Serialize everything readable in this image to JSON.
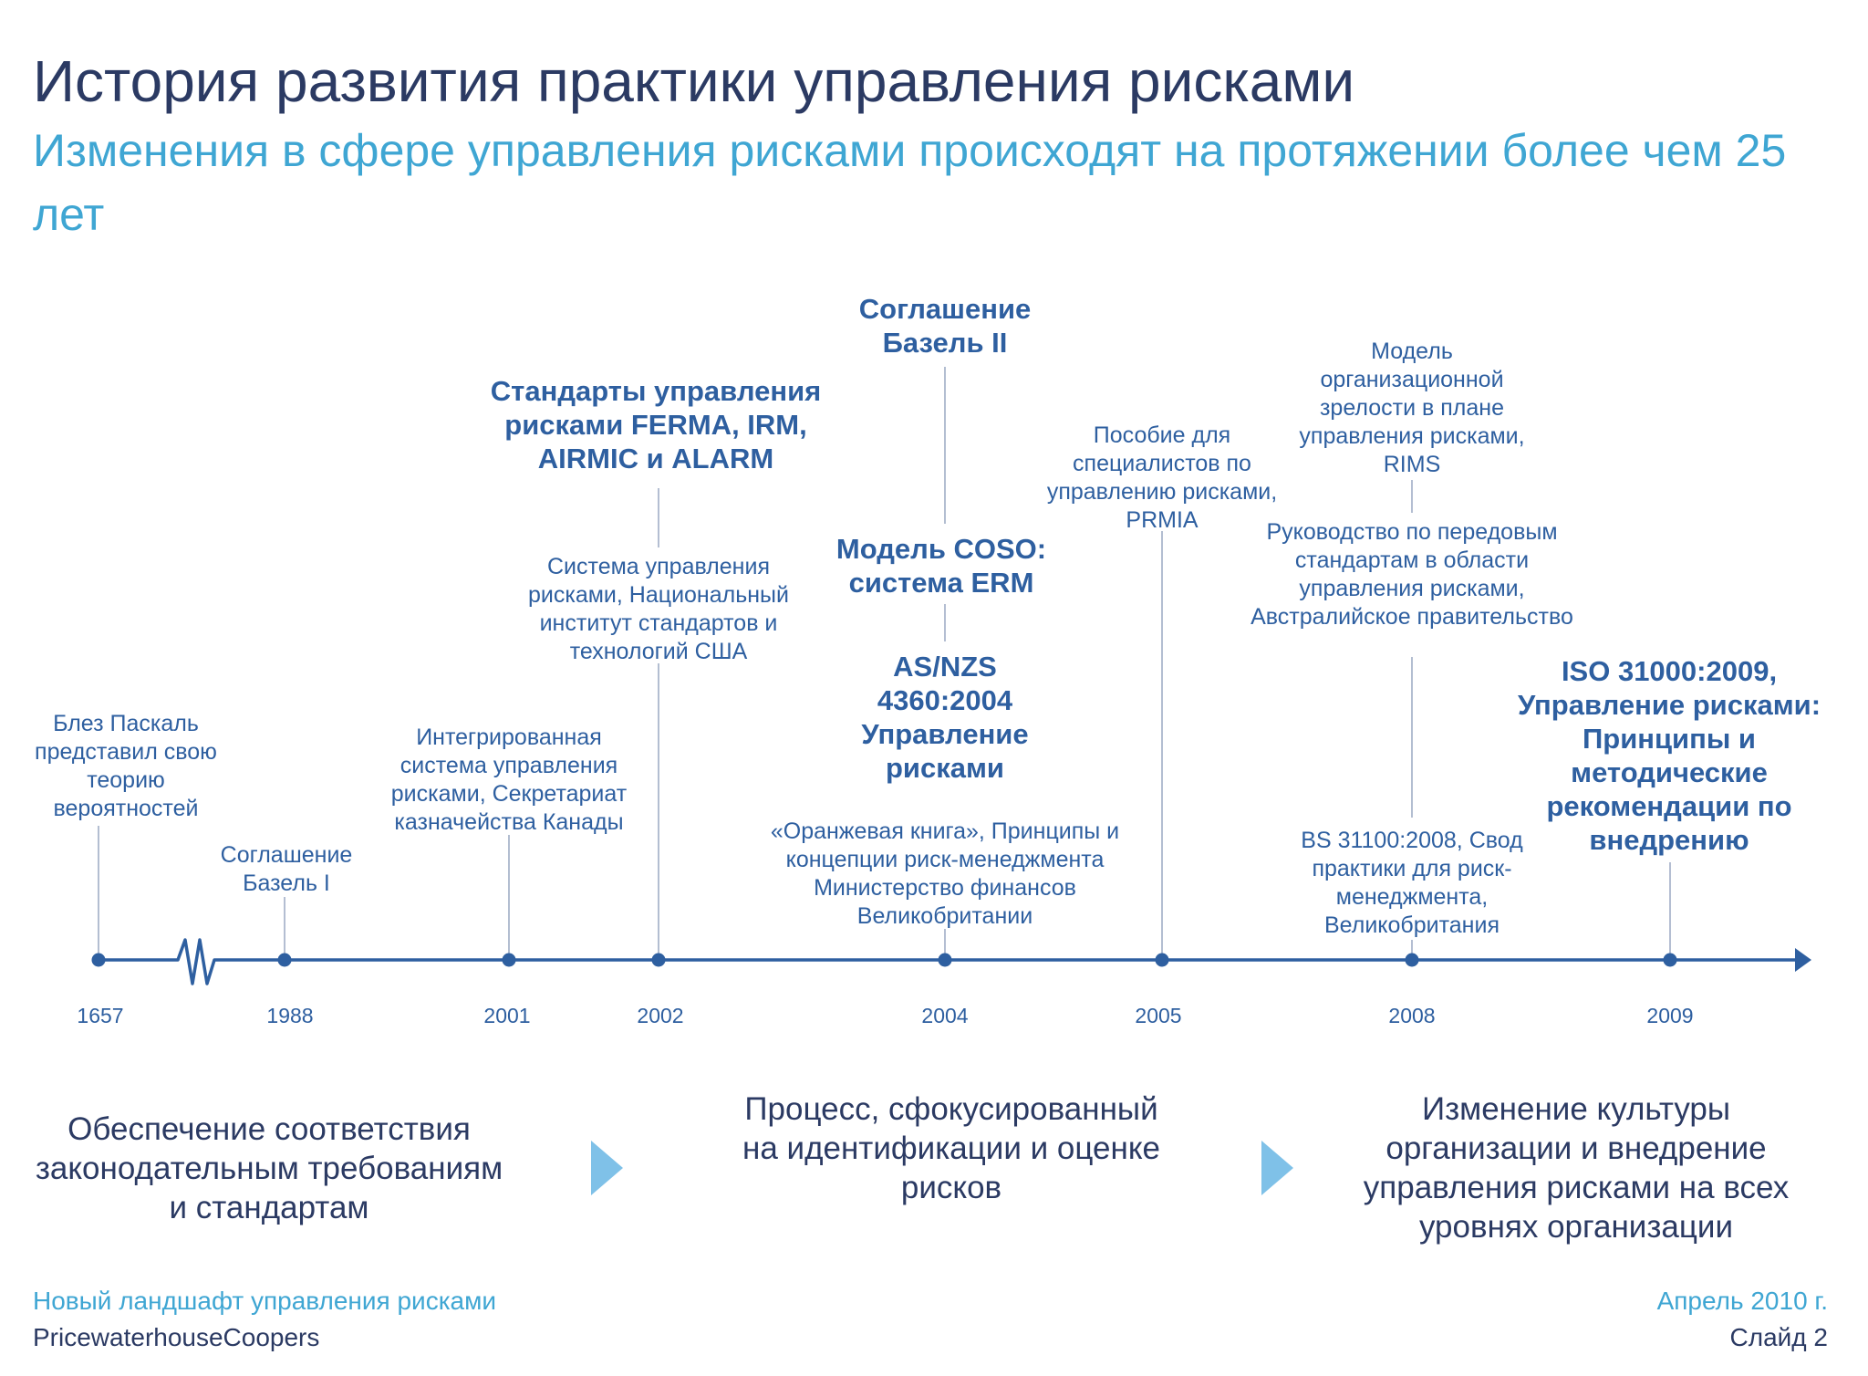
{
  "header": {
    "title": "История развития практики управления рисками",
    "subtitle": "Изменения в сфере управления рисками происходят на протяжении более чем 25 лет"
  },
  "timeline": {
    "years": [
      "1657",
      "1988",
      "2001",
      "2002",
      "2004",
      "2005",
      "2008",
      "2009"
    ],
    "events": {
      "pascal": "Блез Паскаль представил свою теорию вероятностей",
      "basel1": "Соглашение Базель I",
      "canada": "Интегрированная система управления рисками, Секретариат казначейства Канады",
      "nist": "Система управления рисками, Национальный институт стандартов и технологий США",
      "ferma": "Стандарты управления рисками FERMA, IRM, AIRMIC и ALARM",
      "basel2": "Соглашение Базель II",
      "coso": "Модель COSO: система ERM",
      "asnzs": "AS/NZS 4360:2004 Управление рисками",
      "orange": "«Оранжевая книга», Принципы и концепции риск-менеджмента Министерство финансов Великобритании",
      "prmia": "Пособие для специалистов по управлению рисками, PRMIA",
      "rims": "Модель организационной зрелости в плане управления рисками, RIMS",
      "australia": "Руководство по передовым стандартам в области управления рисками, Австралийское правительство",
      "bs31100": "BS 31100:2008, Свод практики для риск-менеджмента, Великобритания",
      "iso31000": "ISO 31000:2009, Управление рисками: Принципы и методические рекомендации по внедрению"
    }
  },
  "phases": [
    "Обеспечение соответствия законодательным требованиям и стандартам",
    "Процесс, сфокусированный на идентификации и оценке рисков",
    "Изменение культуры организации и внедрение управления рисками на всех уровнях организации"
  ],
  "footer": {
    "left_line1": "Новый ландшафт управления рисками",
    "left_line2": "PricewaterhouseCoopers",
    "right_line1": "Апрель 2010 г.",
    "right_line2": "Слайд 2"
  },
  "colors": {
    "title": "#2b3a63",
    "subtitle": "#3fa6d3",
    "timeline": "#2e5fa0",
    "connector": "#9aa9c2",
    "chevron": "#7fc1e8"
  }
}
